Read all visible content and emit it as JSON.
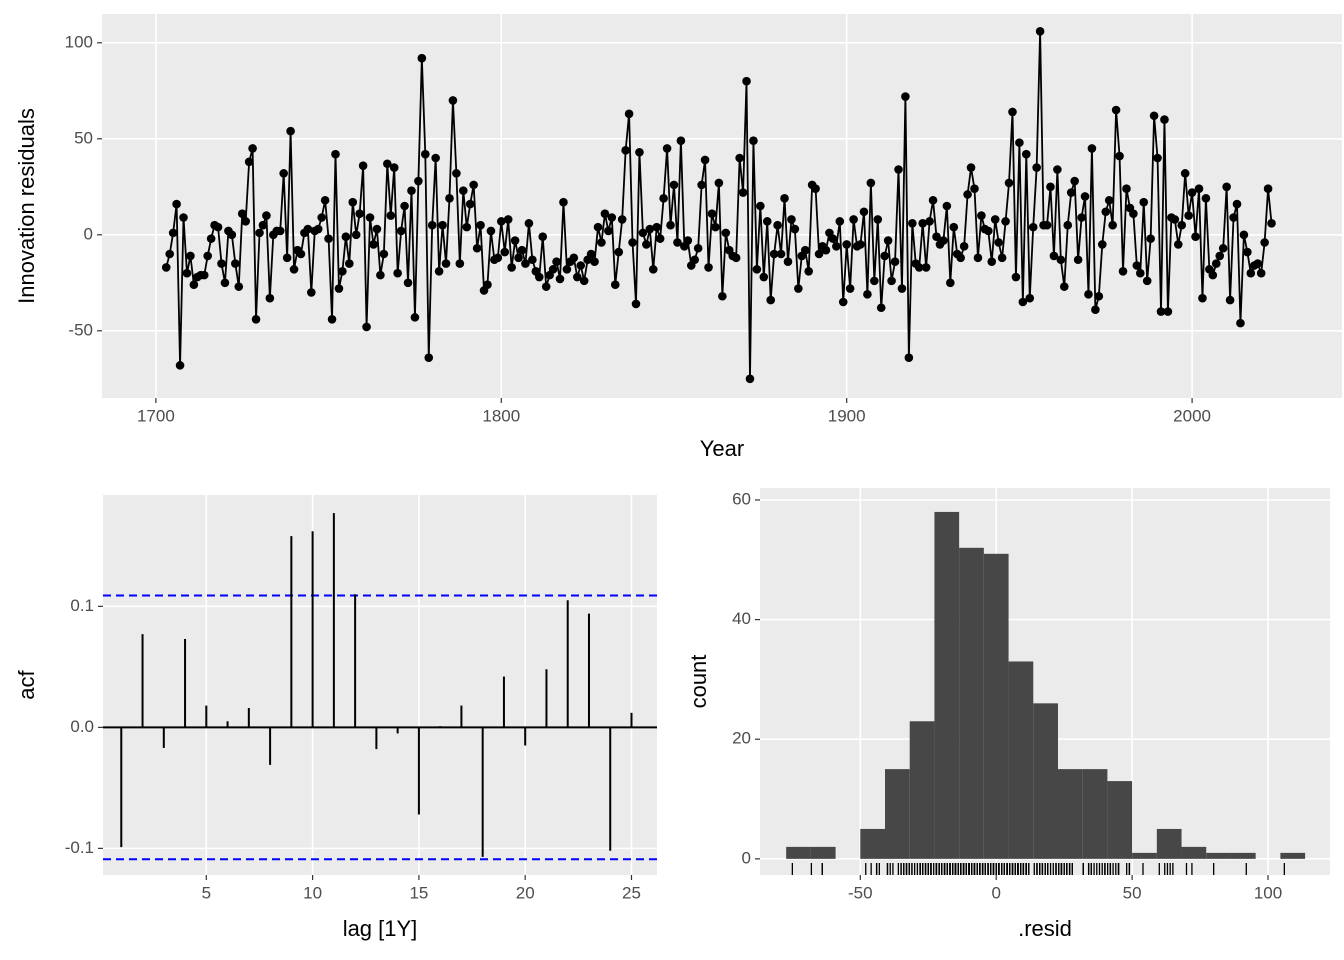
{
  "chart_data": [
    {
      "type": "line",
      "x_label": "Year",
      "y_label": "Innovation residuals",
      "color": "#000000",
      "markers": true,
      "grid": true,
      "xlim": [
        1684.4,
        2043.4
      ],
      "ylim": [
        -85,
        115
      ],
      "xticks": [
        1700,
        1800,
        1900,
        2000
      ],
      "yticks": [
        -50,
        0,
        50,
        100
      ],
      "x": [
        1703,
        1704,
        1705,
        1706,
        1707,
        1708,
        1709,
        1710,
        1711,
        1712,
        1713,
        1714,
        1715,
        1716,
        1717,
        1718,
        1719,
        1720,
        1721,
        1722,
        1723,
        1724,
        1725,
        1726,
        1727,
        1728,
        1729,
        1730,
        1731,
        1732,
        1733,
        1734,
        1735,
        1736,
        1737,
        1738,
        1739,
        1740,
        1741,
        1742,
        1743,
        1744,
        1745,
        1746,
        1747,
        1748,
        1749,
        1750,
        1751,
        1752,
        1753,
        1754,
        1755,
        1756,
        1757,
        1758,
        1759,
        1760,
        1761,
        1762,
        1763,
        1764,
        1765,
        1766,
        1767,
        1768,
        1769,
        1770,
        1771,
        1772,
        1773,
        1774,
        1775,
        1776,
        1777,
        1778,
        1779,
        1780,
        1781,
        1782,
        1783,
        1784,
        1785,
        1786,
        1787,
        1788,
        1789,
        1790,
        1791,
        1792,
        1793,
        1794,
        1795,
        1796,
        1797,
        1798,
        1799,
        1800,
        1801,
        1802,
        1803,
        1804,
        1805,
        1806,
        1807,
        1808,
        1809,
        1810,
        1811,
        1812,
        1813,
        1814,
        1815,
        1816,
        1817,
        1818,
        1819,
        1820,
        1821,
        1822,
        1823,
        1824,
        1825,
        1826,
        1827,
        1828,
        1829,
        1830,
        1831,
        1832,
        1833,
        1834,
        1835,
        1836,
        1837,
        1838,
        1839,
        1840,
        1841,
        1842,
        1843,
        1844,
        1845,
        1846,
        1847,
        1848,
        1849,
        1850,
        1851,
        1852,
        1853,
        1854,
        1855,
        1856,
        1857,
        1858,
        1859,
        1860,
        1861,
        1862,
        1863,
        1864,
        1865,
        1866,
        1867,
        1868,
        1869,
        1870,
        1871,
        1872,
        1873,
        1874,
        1875,
        1876,
        1877,
        1878,
        1879,
        1880,
        1881,
        1882,
        1883,
        1884,
        1885,
        1886,
        1887,
        1888,
        1889,
        1890,
        1891,
        1892,
        1893,
        1894,
        1895,
        1896,
        1897,
        1898,
        1899,
        1900,
        1901,
        1902,
        1903,
        1904,
        1905,
        1906,
        1907,
        1908,
        1909,
        1910,
        1911,
        1912,
        1913,
        1914,
        1915,
        1916,
        1917,
        1918,
        1919,
        1920,
        1921,
        1922,
        1923,
        1924,
        1925,
        1926,
        1927,
        1928,
        1929,
        1930,
        1931,
        1932,
        1933,
        1934,
        1935,
        1936,
        1937,
        1938,
        1939,
        1940,
        1941,
        1942,
        1943,
        1944,
        1945,
        1946,
        1947,
        1948,
        1949,
        1950,
        1951,
        1952,
        1953,
        1954,
        1955,
        1956,
        1957,
        1958,
        1959,
        1960,
        1961,
        1962,
        1963,
        1964,
        1965,
        1966,
        1967,
        1968,
        1969,
        1970,
        1971,
        1972,
        1973,
        1974,
        1975,
        1976,
        1977,
        1978,
        1979,
        1980,
        1981,
        1982,
        1983,
        1984,
        1985,
        1986,
        1987,
        1988,
        1989,
        1990,
        1991,
        1992,
        1993,
        1994,
        1995,
        1996,
        1997,
        1998,
        1999,
        2000,
        2001,
        2002,
        2003,
        2004,
        2005,
        2006,
        2007,
        2008,
        2009,
        2010,
        2011,
        2012,
        2013,
        2014,
        2015,
        2016,
        2017,
        2018,
        2019,
        2020,
        2021,
        2022,
        2023
      ],
      "values": [
        -17,
        -10,
        1,
        16,
        -68,
        9,
        -20,
        -11,
        -26,
        -22,
        -21,
        -21,
        -11,
        -2,
        5,
        4,
        -15,
        -25,
        2,
        0,
        -15,
        -27,
        11,
        7,
        38,
        45,
        -44,
        1,
        5,
        10,
        -33,
        0,
        2,
        2,
        32,
        -12,
        54,
        -18,
        -8,
        -10,
        1,
        3,
        -30,
        2,
        3,
        9,
        18,
        -2,
        -44,
        42,
        -28,
        -19,
        -1,
        -15,
        17,
        0,
        11,
        36,
        -48,
        9,
        -5,
        3,
        -21,
        -10,
        37,
        10,
        35,
        -20,
        2,
        15,
        -25,
        23,
        -43,
        28,
        92,
        42,
        -64,
        5,
        40,
        -19,
        5,
        -15,
        19,
        70,
        32,
        -15,
        23,
        4,
        16,
        26,
        -7,
        5,
        -29,
        -26,
        2,
        -13,
        -12,
        7,
        -9,
        8,
        -17,
        -3,
        -12,
        -8,
        -15,
        6,
        -13,
        -19,
        -22,
        -1,
        -27,
        -21,
        -18,
        -14,
        -23,
        17,
        -18,
        -14,
        -12,
        -22,
        -16,
        -24,
        -13,
        -10,
        -14,
        4,
        -4,
        11,
        2,
        9,
        -26,
        -9,
        8,
        44,
        63,
        -4,
        -36,
        43,
        1,
        -5,
        3,
        -18,
        4,
        -2,
        19,
        45,
        5,
        26,
        -4,
        49,
        -6,
        -3,
        -16,
        -13,
        -7,
        26,
        39,
        -17,
        11,
        4,
        27,
        -32,
        1,
        -8,
        -11,
        -12,
        40,
        22,
        80,
        -75,
        49,
        -18,
        15,
        -22,
        7,
        -34,
        -10,
        5,
        -10,
        19,
        -14,
        8,
        3,
        -28,
        -11,
        -8,
        -19,
        26,
        24,
        -10,
        -6,
        -8,
        1,
        -2,
        -6,
        7,
        -35,
        -5,
        -28,
        8,
        -6,
        -5,
        12,
        -31,
        27,
        -24,
        8,
        -38,
        -11,
        -3,
        -24,
        -14,
        34,
        -28,
        72,
        -64,
        6,
        -15,
        -17,
        6,
        -17,
        7,
        18,
        -1,
        -5,
        -3,
        15,
        -25,
        4,
        -10,
        -12,
        -6,
        21,
        35,
        24,
        -12,
        10,
        3,
        2,
        -14,
        8,
        -4,
        -12,
        7,
        27,
        64,
        -22,
        48,
        -35,
        42,
        -33,
        4,
        35,
        106,
        5,
        5,
        25,
        -11,
        34,
        -13,
        -27,
        5,
        22,
        28,
        -13,
        9,
        20,
        -31,
        45,
        -39,
        -32,
        -5,
        12,
        18,
        5,
        65,
        41,
        -19,
        24,
        14,
        11,
        -16,
        -20,
        17,
        -24,
        -2,
        62,
        40,
        -40,
        60,
        -40,
        9,
        8,
        -5,
        5,
        32,
        10,
        22,
        -1,
        24,
        -33,
        19,
        -18,
        -21,
        -15,
        -11,
        -7,
        25,
        -34,
        9,
        16,
        -46,
        0,
        -9,
        -20,
        -16,
        -15,
        -20,
        -4,
        24,
        6
      ]
    },
    {
      "type": "acf",
      "x_label": "lag [1Y]",
      "y_label": "acf",
      "color": "#000000",
      "grid": true,
      "xlim": [
        0.14,
        26.2
      ],
      "ylim": [
        -0.122,
        0.192
      ],
      "xticks": [
        5,
        10,
        15,
        20,
        25
      ],
      "yticks": [
        -0.1,
        {
          "value": 0,
          "label": "0.0"
        },
        0.1
      ],
      "x": [
        1,
        2,
        3,
        4,
        5,
        6,
        7,
        8,
        9,
        10,
        11,
        12,
        13,
        14,
        15,
        16,
        17,
        18,
        19,
        20,
        21,
        22,
        23,
        24,
        25
      ],
      "values": [
        -0.099,
        0.077,
        -0.017,
        0.073,
        0.018,
        0.005,
        0.016,
        -0.031,
        0.158,
        0.162,
        0.177,
        0.11,
        -0.018,
        -0.005,
        -0.072,
        0.001,
        0.018,
        -0.107,
        0.042,
        -0.015,
        0.048,
        0.105,
        0.094,
        -0.102,
        0.012
      ],
      "reference_lines": [
        {
          "value": 0,
          "color": "#000000",
          "dashed": false
        },
        {
          "value": 0.109,
          "color": "#0000ff",
          "dashed": true
        },
        {
          "value": -0.109,
          "color": "#0000ff",
          "dashed": true
        }
      ]
    },
    {
      "type": "histogram",
      "x_label": ".resid",
      "y_label": "count",
      "color": "#474747",
      "grid": true,
      "rug": true,
      "xlim": [
        -86.9,
        122.8
      ],
      "ylim": [
        -2.7,
        62
      ],
      "xticks": [
        -50,
        0,
        50,
        100
      ],
      "yticks": [
        0,
        20,
        40,
        60
      ],
      "bins": [
        -77.27,
        -68.18,
        -59.09,
        -50,
        -40.91,
        -31.82,
        -22.73,
        -13.64,
        -4.55,
        4.55,
        13.64,
        22.73,
        31.82,
        40.91,
        50,
        59.09,
        68.18,
        77.27,
        86.36,
        95.45,
        104.55,
        113.64
      ],
      "counts": [
        2,
        2,
        0,
        5,
        15,
        23,
        58,
        52,
        51,
        33,
        26,
        15,
        15,
        13,
        1,
        5,
        2,
        1,
        1,
        0,
        1
      ]
    }
  ]
}
